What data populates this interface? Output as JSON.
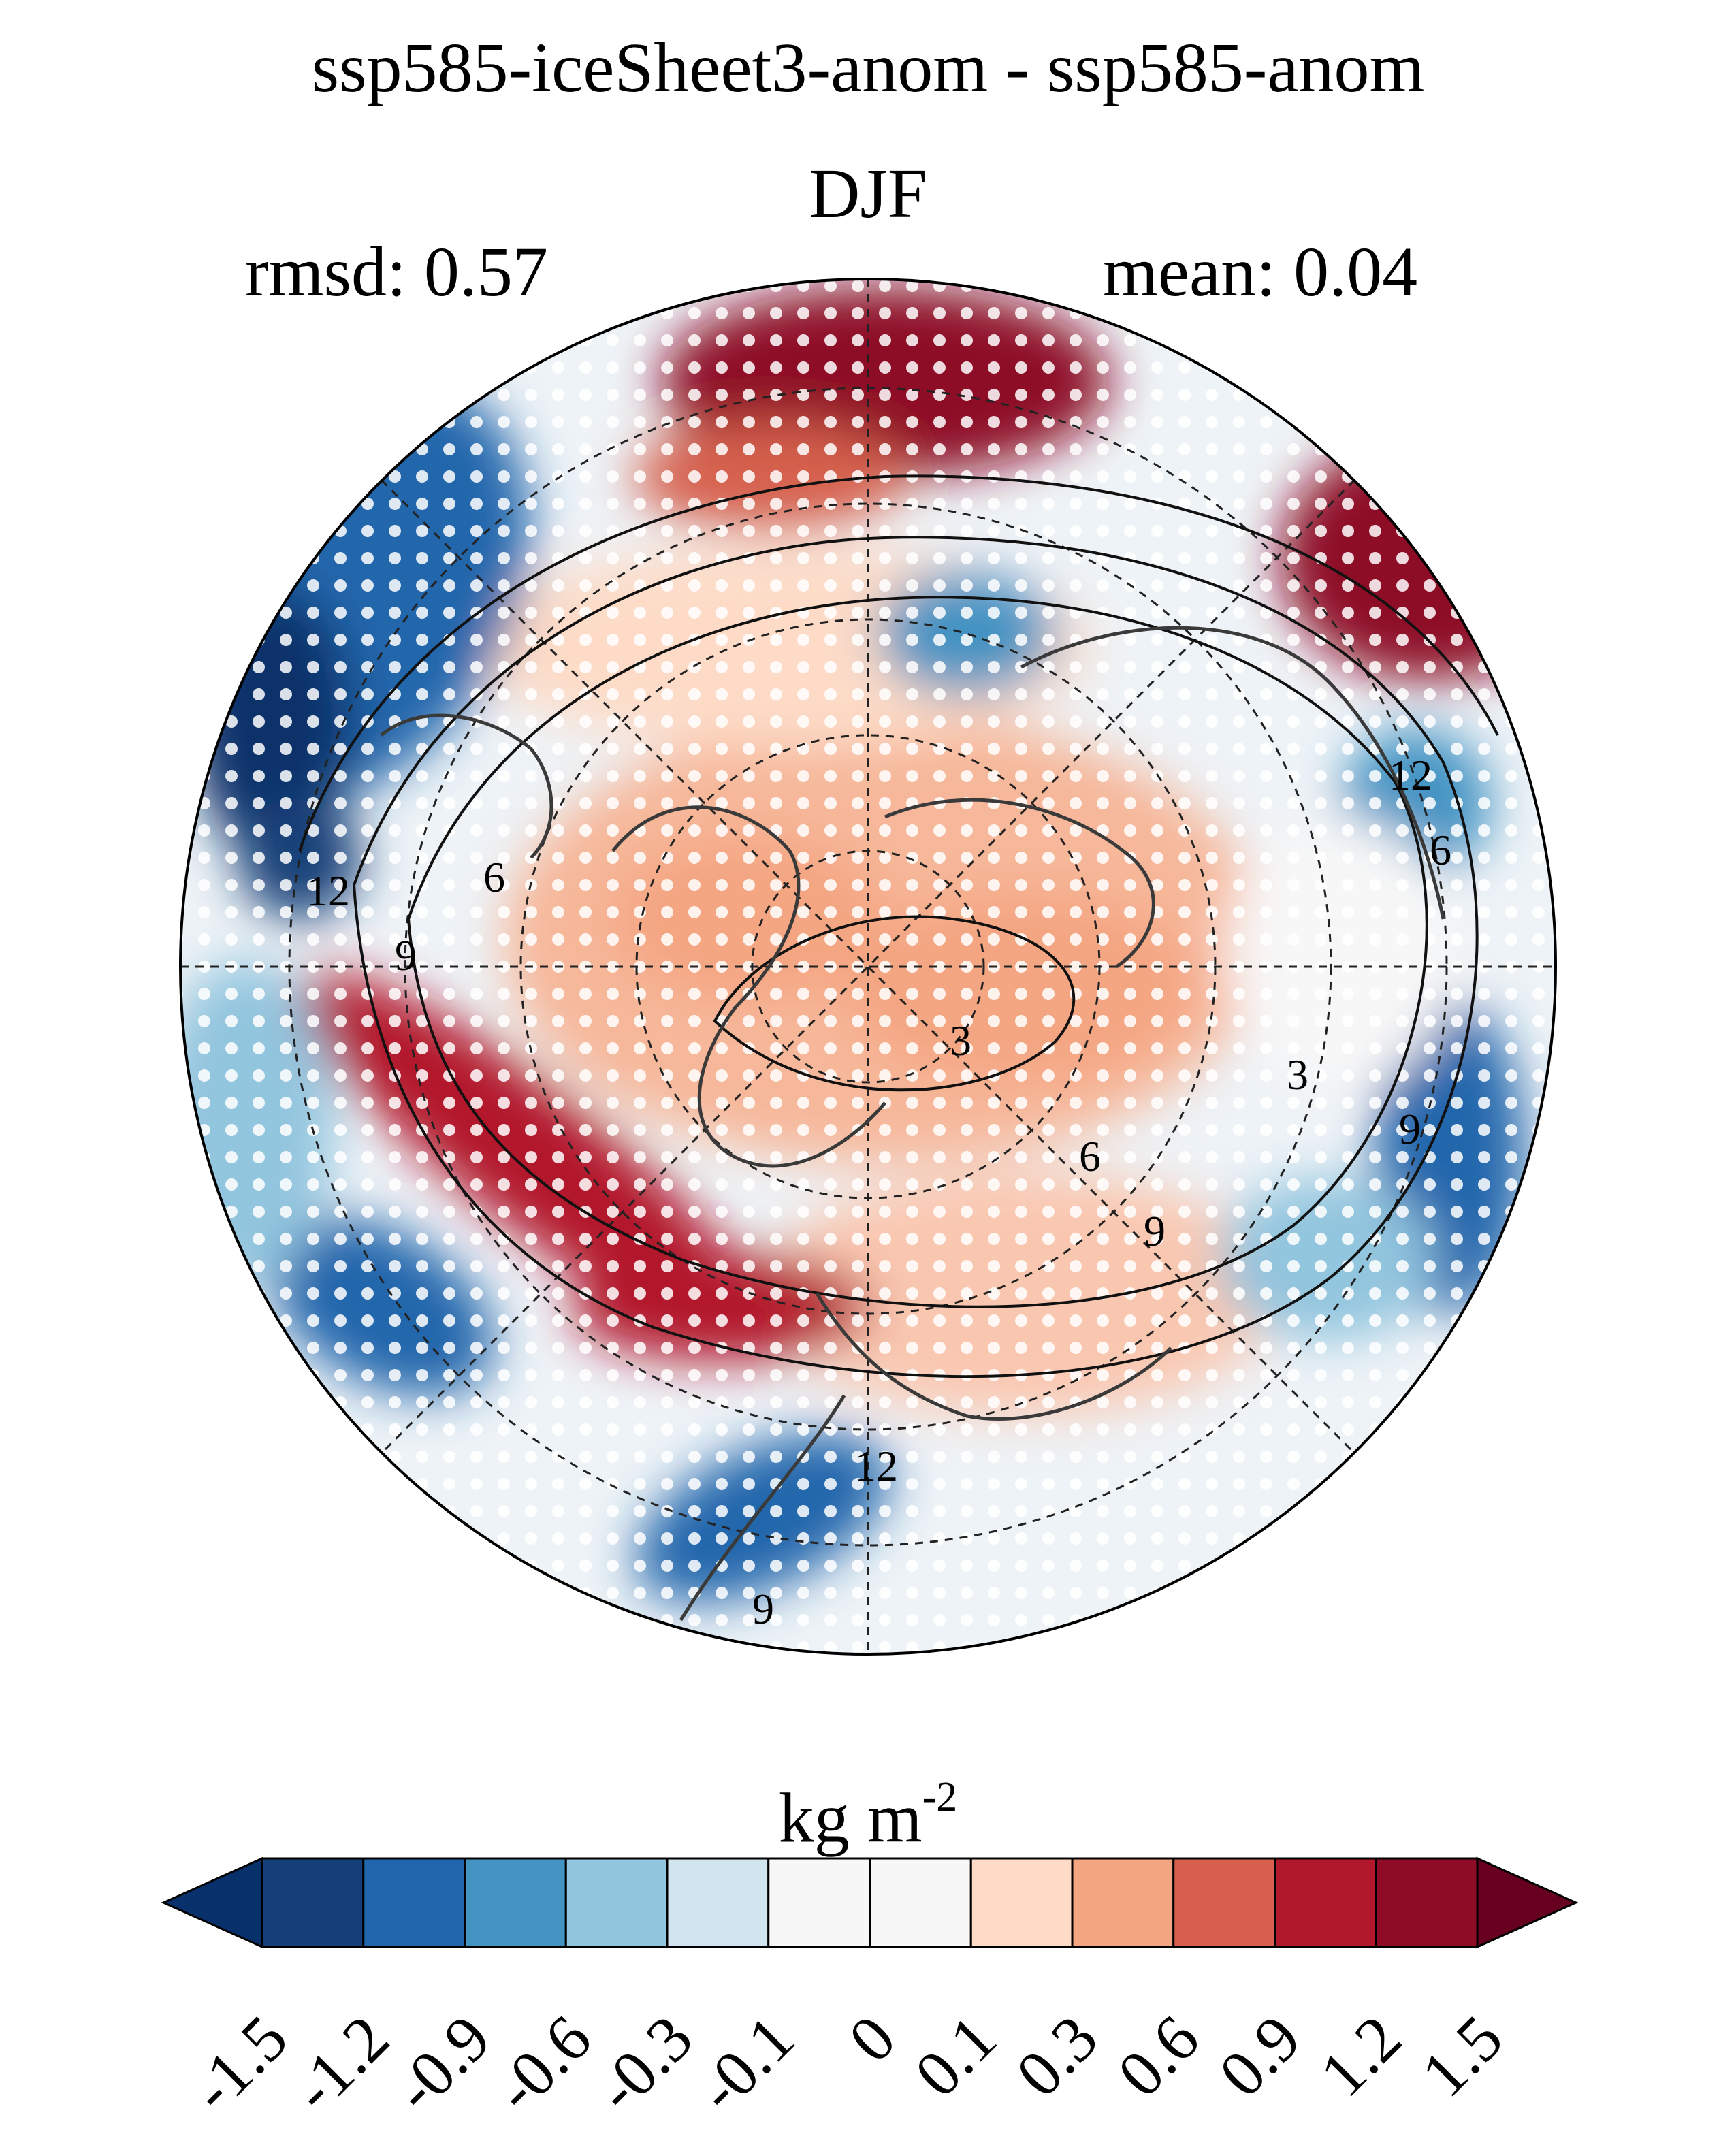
{
  "title": "ssp585-iceSheet3-anom - ssp585-anom",
  "subtitle": "DJF",
  "stats": {
    "rmsd_label": "rmsd: 0.57",
    "mean_label": "mean: 0.04"
  },
  "colorbar": {
    "units_base": "kg m",
    "units_exp": "-2",
    "levels": [
      "-1.5",
      "-1.2",
      "-0.9",
      "-0.6",
      "-0.3",
      "-0.1",
      "0",
      "0.1",
      "0.3",
      "0.6",
      "0.9",
      "1.2",
      "1.5"
    ],
    "colors": [
      "#08306b",
      "#143f78",
      "#2166ac",
      "#4393c3",
      "#92c5de",
      "#d1e5f0",
      "#f7f7f7",
      "#f7f7f7",
      "#fddbc7",
      "#f4a582",
      "#d6604d",
      "#b2182b",
      "#8e0c25",
      "#67001f"
    ]
  },
  "contour_labels": [
    "12",
    "6",
    "9",
    "3",
    "6",
    "9",
    "12",
    "9",
    "12",
    "6",
    "3",
    "9"
  ]
}
